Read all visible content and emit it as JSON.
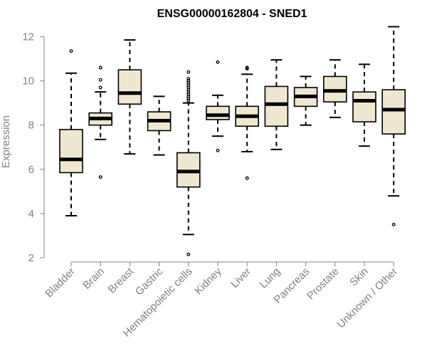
{
  "chart_data": {
    "type": "boxplot",
    "title": "ENSG00000162804 - SNED1",
    "ylabel": "Expression",
    "xlabel": "",
    "ylim": [
      2,
      12.5
    ],
    "yticks": [
      2,
      4,
      6,
      8,
      10,
      12
    ],
    "grid": false,
    "colors": {
      "box_fill": "#efe7d0",
      "box_stroke": "#000000",
      "axis": "#808080",
      "median": "#000000"
    },
    "categories": [
      "Bladder",
      "Brain",
      "Breast",
      "Gastric",
      "Hematopoietic cells",
      "Kidney",
      "Liver",
      "Lung",
      "Pancreas",
      "Prostate",
      "Skin",
      "Unknown / Other"
    ],
    "boxes": [
      {
        "category": "Bladder",
        "whisker_low": 3.9,
        "q1": 5.85,
        "median": 6.45,
        "q3": 7.8,
        "whisker_high": 10.35,
        "outliers": [
          11.35
        ]
      },
      {
        "category": "Brain",
        "whisker_low": 7.35,
        "q1": 8.0,
        "median": 8.3,
        "q3": 8.55,
        "whisker_high": 9.5,
        "outliers": [
          5.65,
          9.7,
          10.05,
          10.6
        ]
      },
      {
        "category": "Breast",
        "whisker_low": 6.7,
        "q1": 8.95,
        "median": 9.45,
        "q3": 10.5,
        "whisker_high": 11.85,
        "outliers": []
      },
      {
        "category": "Gastric",
        "whisker_low": 6.65,
        "q1": 7.75,
        "median": 8.2,
        "q3": 8.6,
        "whisker_high": 9.3,
        "outliers": []
      },
      {
        "category": "Hematopoietic cells",
        "whisker_low": 3.05,
        "q1": 5.2,
        "median": 5.9,
        "q3": 6.75,
        "whisker_high": 9.0,
        "outliers": [
          2.15,
          9.1,
          9.2,
          9.3,
          9.4,
          9.5,
          9.6,
          9.7,
          9.8,
          9.9,
          10.0,
          10.1,
          10.4
        ]
      },
      {
        "category": "Kidney",
        "whisker_low": 7.5,
        "q1": 8.25,
        "median": 8.45,
        "q3": 8.85,
        "whisker_high": 9.35,
        "outliers": [
          6.85,
          10.85
        ]
      },
      {
        "category": "Liver",
        "whisker_low": 6.8,
        "q1": 7.95,
        "median": 8.4,
        "q3": 8.85,
        "whisker_high": 10.3,
        "outliers": [
          5.6,
          10.55,
          10.6
        ]
      },
      {
        "category": "Lung",
        "whisker_low": 6.9,
        "q1": 7.95,
        "median": 8.95,
        "q3": 9.75,
        "whisker_high": 10.95,
        "outliers": []
      },
      {
        "category": "Pancreas",
        "whisker_low": 8.0,
        "q1": 8.85,
        "median": 9.3,
        "q3": 9.7,
        "whisker_high": 10.2,
        "outliers": []
      },
      {
        "category": "Prostate",
        "whisker_low": 8.35,
        "q1": 9.05,
        "median": 9.55,
        "q3": 10.2,
        "whisker_high": 10.95,
        "outliers": []
      },
      {
        "category": "Skin",
        "whisker_low": 7.05,
        "q1": 8.15,
        "median": 9.1,
        "q3": 9.5,
        "whisker_high": 10.75,
        "outliers": []
      },
      {
        "category": "Unknown / Other",
        "whisker_low": 4.8,
        "q1": 7.6,
        "median": 8.7,
        "q3": 9.6,
        "whisker_high": 12.45,
        "outliers": [
          3.5
        ]
      }
    ]
  }
}
